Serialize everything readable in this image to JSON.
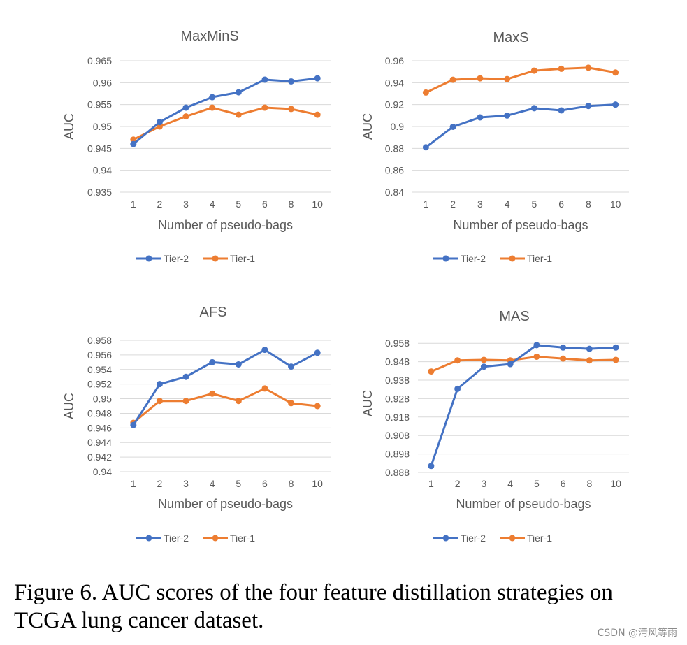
{
  "chart_data": [
    {
      "type": "line",
      "title": "MaxMinS",
      "xlabel": "Number of pseudo-bags",
      "ylabel": "AUC",
      "categories": [
        "1",
        "2",
        "3",
        "4",
        "5",
        "6",
        "8",
        "10"
      ],
      "ylim": [
        0.935,
        0.965
      ],
      "yticks": [
        "0.965",
        "0.96",
        "0.955",
        "0.95",
        "0.945",
        "0.94",
        "0.935"
      ],
      "grid": true,
      "legend": "bottom",
      "series": [
        {
          "name": "Tier-2",
          "color": "#4472C4",
          "values": [
            0.946,
            0.951,
            0.9543,
            0.9567,
            0.9578,
            0.9607,
            0.9603,
            0.961
          ]
        },
        {
          "name": "Tier-1",
          "color": "#ED7D31",
          "values": [
            0.947,
            0.95,
            0.9523,
            0.9543,
            0.9527,
            0.9543,
            0.954,
            0.9527
          ]
        }
      ]
    },
    {
      "type": "line",
      "title": "MaxS",
      "xlabel": "Number of pseudo-bags",
      "ylabel": "AUC",
      "categories": [
        "1",
        "2",
        "3",
        "4",
        "5",
        "6",
        "8",
        "10"
      ],
      "ylim": [
        0.84,
        0.96
      ],
      "yticks": [
        "0.96",
        "0.94",
        "0.92",
        "0.9",
        "0.88",
        "0.86",
        "0.84"
      ],
      "grid": true,
      "legend": "bottom",
      "series": [
        {
          "name": "Tier-2",
          "color": "#4472C4",
          "values": [
            0.881,
            0.8997,
            0.9083,
            0.91,
            0.9167,
            0.9147,
            0.9187,
            0.92
          ]
        },
        {
          "name": "Tier-1",
          "color": "#ED7D31",
          "values": [
            0.931,
            0.9427,
            0.944,
            0.9433,
            0.951,
            0.9527,
            0.9537,
            0.9493
          ]
        }
      ]
    },
    {
      "type": "line",
      "title": "AFS",
      "xlabel": "Number of pseudo-bags",
      "ylabel": "AUC",
      "categories": [
        "1",
        "2",
        "3",
        "4",
        "5",
        "6",
        "8",
        "10"
      ],
      "ylim": [
        0.94,
        0.958
      ],
      "yticks": [
        "0.958",
        "0.956",
        "0.954",
        "0.952",
        "0.95",
        "0.948",
        "0.946",
        "0.944",
        "0.942",
        "0.94"
      ],
      "grid": true,
      "legend": "bottom",
      "series": [
        {
          "name": "Tier-2",
          "color": "#4472C4",
          "values": [
            0.9464,
            0.952,
            0.953,
            0.955,
            0.9547,
            0.9567,
            0.9544,
            0.9563
          ]
        },
        {
          "name": "Tier-1",
          "color": "#ED7D31",
          "values": [
            0.9467,
            0.9497,
            0.9497,
            0.9507,
            0.9497,
            0.9514,
            0.9494,
            0.949
          ]
        }
      ]
    },
    {
      "type": "line",
      "title": "MAS",
      "xlabel": "Number of pseudo-bags",
      "ylabel": "AUC",
      "categories": [
        "1",
        "2",
        "3",
        "4",
        "5",
        "6",
        "8",
        "10"
      ],
      "ylim": [
        0.888,
        0.963
      ],
      "yticks": [
        "0.958",
        "0.948",
        "0.938",
        "0.928",
        "0.918",
        "0.908",
        "0.898",
        "0.888"
      ],
      "grid": true,
      "legend": "bottom",
      "series": [
        {
          "name": "Tier-2",
          "color": "#4472C4",
          "values": [
            0.8915,
            0.9333,
            0.9453,
            0.9467,
            0.957,
            0.9557,
            0.955,
            0.9557
          ]
        },
        {
          "name": "Tier-1",
          "color": "#ED7D31",
          "values": [
            0.9427,
            0.9487,
            0.949,
            0.9487,
            0.9507,
            0.9497,
            0.9487,
            0.949
          ]
        }
      ]
    }
  ],
  "caption": "Figure 6.  AUC scores of the four feature distillation strategies on TCGA lung cancer dataset.",
  "watermark": "CSDN @清风等雨"
}
